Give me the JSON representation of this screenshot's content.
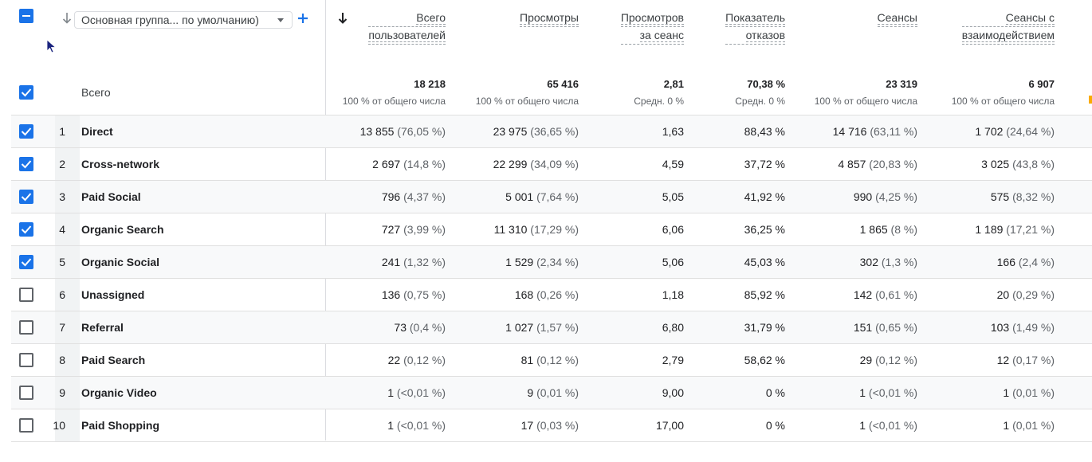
{
  "header": {
    "dimension_label": "Основная группа... по умолчанию)",
    "columns": [
      {
        "l1": "Всего",
        "l2": "пользователей"
      },
      {
        "l1": "Просмотры",
        "l2": ""
      },
      {
        "l1": "Просмотров",
        "l2": "за сеанс"
      },
      {
        "l1": "Показатель",
        "l2": "отказов"
      },
      {
        "l1": "Сеансы",
        "l2": ""
      },
      {
        "l1": "Сеансы с",
        "l2": "взаимодействием"
      }
    ]
  },
  "totals": {
    "label": "Всего",
    "values": [
      "18 218",
      "65 416",
      "2,81",
      "70,38 %",
      "23 319",
      "6 907"
    ],
    "subs": [
      "100 % от общего числа",
      "100 % от общего числа",
      "Средн. 0 %",
      "Средн. 0 %",
      "100 % от общего числа",
      "100 % от общего числа"
    ]
  },
  "rows": [
    {
      "num": "1",
      "label": "Direct",
      "checked": true,
      "cells": [
        [
          "13 855",
          "(76,05 %)"
        ],
        [
          "23 975",
          "(36,65 %)"
        ],
        [
          "1,63",
          ""
        ],
        [
          "88,43 %",
          ""
        ],
        [
          "14 716",
          "(63,11 %)"
        ],
        [
          "1 702",
          "(24,64 %)"
        ]
      ]
    },
    {
      "num": "2",
      "label": "Cross-network",
      "checked": true,
      "cells": [
        [
          "2 697",
          "(14,8 %)"
        ],
        [
          "22 299",
          "(34,09 %)"
        ],
        [
          "4,59",
          ""
        ],
        [
          "37,72 %",
          ""
        ],
        [
          "4 857",
          "(20,83 %)"
        ],
        [
          "3 025",
          "(43,8 %)"
        ]
      ]
    },
    {
      "num": "3",
      "label": "Paid Social",
      "checked": true,
      "cells": [
        [
          "796",
          "(4,37 %)"
        ],
        [
          "5 001",
          "(7,64 %)"
        ],
        [
          "5,05",
          ""
        ],
        [
          "41,92 %",
          ""
        ],
        [
          "990",
          "(4,25 %)"
        ],
        [
          "575",
          "(8,32 %)"
        ]
      ]
    },
    {
      "num": "4",
      "label": "Organic Search",
      "checked": true,
      "cells": [
        [
          "727",
          "(3,99 %)"
        ],
        [
          "11 310",
          "(17,29 %)"
        ],
        [
          "6,06",
          ""
        ],
        [
          "36,25 %",
          ""
        ],
        [
          "1 865",
          "(8 %)"
        ],
        [
          "1 189",
          "(17,21 %)"
        ]
      ]
    },
    {
      "num": "5",
      "label": "Organic Social",
      "checked": true,
      "cells": [
        [
          "241",
          "(1,32 %)"
        ],
        [
          "1 529",
          "(2,34 %)"
        ],
        [
          "5,06",
          ""
        ],
        [
          "45,03 %",
          ""
        ],
        [
          "302",
          "(1,3 %)"
        ],
        [
          "166",
          "(2,4 %)"
        ]
      ]
    },
    {
      "num": "6",
      "label": "Unassigned",
      "checked": false,
      "cells": [
        [
          "136",
          "(0,75 %)"
        ],
        [
          "168",
          "(0,26 %)"
        ],
        [
          "1,18",
          ""
        ],
        [
          "85,92 %",
          ""
        ],
        [
          "142",
          "(0,61 %)"
        ],
        [
          "20",
          "(0,29 %)"
        ]
      ]
    },
    {
      "num": "7",
      "label": "Referral",
      "checked": false,
      "cells": [
        [
          "73",
          "(0,4 %)"
        ],
        [
          "1 027",
          "(1,57 %)"
        ],
        [
          "6,80",
          ""
        ],
        [
          "31,79 %",
          ""
        ],
        [
          "151",
          "(0,65 %)"
        ],
        [
          "103",
          "(1,49 %)"
        ]
      ]
    },
    {
      "num": "8",
      "label": "Paid Search",
      "checked": false,
      "cells": [
        [
          "22",
          "(0,12 %)"
        ],
        [
          "81",
          "(0,12 %)"
        ],
        [
          "2,79",
          ""
        ],
        [
          "58,62 %",
          ""
        ],
        [
          "29",
          "(0,12 %)"
        ],
        [
          "12",
          "(0,17 %)"
        ]
      ]
    },
    {
      "num": "9",
      "label": "Organic Video",
      "checked": false,
      "cells": [
        [
          "1",
          "(<0,01 %)"
        ],
        [
          "9",
          "(0,01 %)"
        ],
        [
          "9,00",
          ""
        ],
        [
          "0 %",
          ""
        ],
        [
          "1",
          "(<0,01 %)"
        ],
        [
          "1",
          "(0,01 %)"
        ]
      ]
    },
    {
      "num": "10",
      "label": "Paid Shopping",
      "checked": false,
      "cells": [
        [
          "1",
          "(<0,01 %)"
        ],
        [
          "17",
          "(0,03 %)"
        ],
        [
          "17,00",
          ""
        ],
        [
          "0 %",
          ""
        ],
        [
          "1",
          "(<0,01 %)"
        ],
        [
          "1",
          "(0,01 %)"
        ]
      ]
    }
  ],
  "colors": {
    "accent": "#1a73e8",
    "border": "#e0e0e0",
    "muted": "#5f6368"
  }
}
